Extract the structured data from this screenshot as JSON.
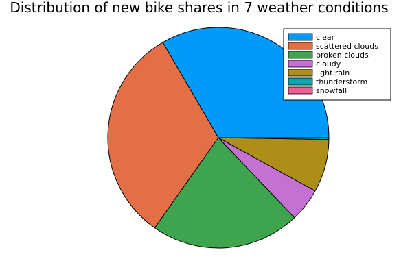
{
  "chart_data": {
    "type": "pie",
    "title": "Distribution of new bike shares in 7 weather conditions",
    "legend_position": "top-right",
    "slices": [
      {
        "label": "clear",
        "value": 32.7,
        "color": "#009AFA"
      },
      {
        "label": "scattered clouds",
        "value": 31.2,
        "color": "#E26F46"
      },
      {
        "label": "broken clouds",
        "value": 21.4,
        "color": "#3EA44E"
      },
      {
        "label": "cloudy",
        "value": 4.8,
        "color": "#C371D2"
      },
      {
        "label": "light rain",
        "value": 7.6,
        "color": "#AC8E18"
      },
      {
        "label": "thunderstorm",
        "value": 0.2,
        "color": "#00A9AD"
      },
      {
        "label": "snowfall",
        "value": 0.05,
        "color": "#ED5E93"
      }
    ]
  }
}
